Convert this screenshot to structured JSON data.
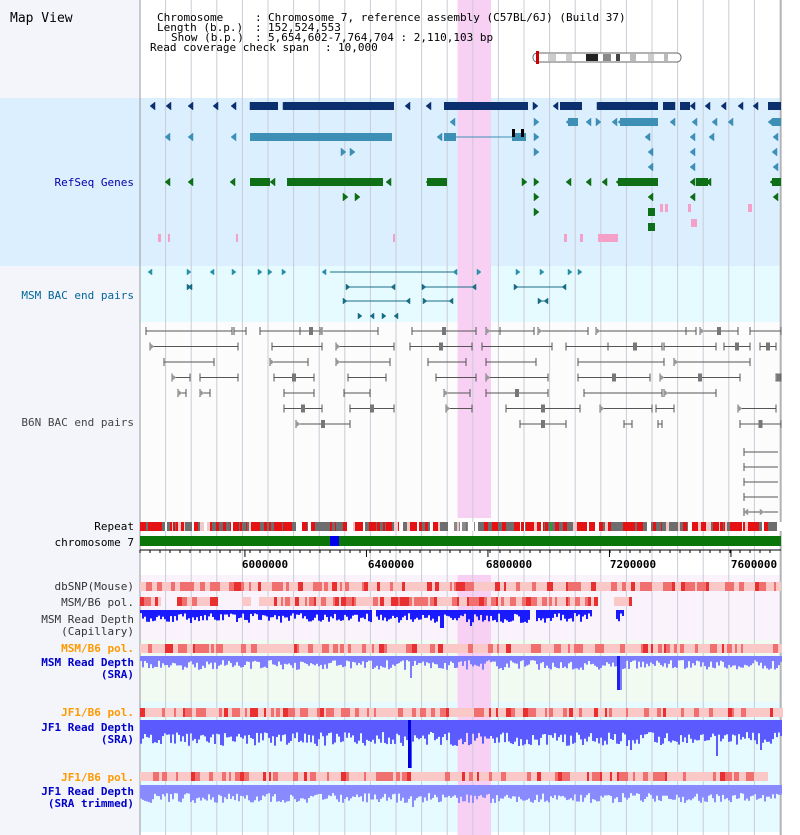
{
  "title": "Map View",
  "info": {
    "chromosome_key": "Chromosome",
    "chromosome_val": "Chromosome 7, reference assembly (C57BL/6J) (Build 37)",
    "length_key": "Length (b.p.)",
    "length_val": "152,524,553",
    "show_key": "Show (b.p.)",
    "show_val": "5,654,602-7,764,704 : 2,110,103 bp",
    "coverage_key": "Read coverage check span",
    "coverage_val": "10,000"
  },
  "view": {
    "start": 5654602,
    "end": 7764704,
    "highlight_start": 6700000,
    "highlight_end": 6810000
  },
  "axis": {
    "ticks": [
      6000000,
      6400000,
      6800000,
      7200000,
      7600000
    ],
    "labels": [
      "6000000",
      "6400000",
      "6800000",
      "7200000",
      "7600000"
    ]
  },
  "tracks": {
    "refseq": {
      "label": "RefSeq Genes",
      "color": "#0000aa"
    },
    "msm_bac": {
      "label": "MSM BAC end pairs",
      "color": "#006699"
    },
    "b6n_bac": {
      "label": "B6N BAC end pairs",
      "color": "#444444"
    },
    "repeat": {
      "label": "Repeat",
      "color": "#000000"
    },
    "chromosome": {
      "label": "chromosome 7",
      "color": "#000000"
    },
    "dbsnp": {
      "label": "dbSNP(Mouse)",
      "color": "#333333"
    },
    "msm_pol_cap": {
      "label": "MSM/B6 pol.",
      "color": "#333333"
    },
    "msm_depth_cap": {
      "label_line1": "MSM Read Depth",
      "label_line2": "(Capillary)",
      "color": "#333333"
    },
    "msm_pol_sra": {
      "label": "MSM/B6 pol.",
      "color": "#ff9900"
    },
    "msm_depth_sra": {
      "label_line1": "MSM Read Depth",
      "label_line2": "(SRA)",
      "color": "#0000cc"
    },
    "jf1_pol_sra": {
      "label": "JF1/B6 pol.",
      "color": "#ff9900"
    },
    "jf1_depth_sra": {
      "label_line1": "JF1 Read Depth",
      "label_line2": "(SRA)",
      "color": "#0000cc"
    },
    "jf1_pol_trim": {
      "label": "JF1/B6 pol.",
      "color": "#ff9900"
    },
    "jf1_depth_trim": {
      "label_line1": "JF1 Read Depth",
      "label_line2": "(SRA trimmed)",
      "color": "#0000cc"
    }
  }
}
